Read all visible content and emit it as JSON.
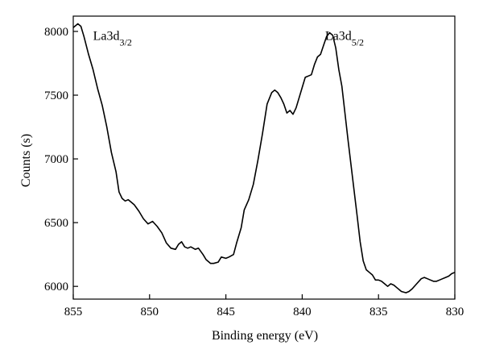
{
  "chart_data": {
    "type": "line",
    "title": "",
    "xlabel": "Binding energy (eV)",
    "ylabel": "Counts (s)",
    "xlim": [
      855,
      830
    ],
    "ylim": [
      5900,
      8120
    ],
    "x_reversed": true,
    "x_ticks": [
      855,
      850,
      845,
      840,
      835,
      830
    ],
    "x_tick_labels": [
      "855",
      "850",
      "845",
      "840",
      "835",
      "830"
    ],
    "y_ticks": [
      6000,
      6500,
      7000,
      7500,
      8000
    ],
    "y_tick_labels": [
      "6000",
      "6500",
      "7000",
      "7500",
      "8000"
    ],
    "grid": false,
    "legend": "none",
    "series": [
      {
        "color": "#000000",
        "x": [
          855.0,
          854.7,
          854.5,
          854.3,
          854.0,
          853.7,
          853.4,
          853.1,
          852.8,
          852.5,
          852.2,
          852.0,
          851.8,
          851.6,
          851.4,
          851.2,
          851.0,
          850.7,
          850.4,
          850.1,
          849.8,
          849.5,
          849.2,
          848.9,
          848.6,
          848.3,
          848.1,
          847.9,
          847.7,
          847.5,
          847.3,
          847.0,
          846.8,
          846.5,
          846.3,
          846.0,
          845.8,
          845.5,
          845.3,
          845.0,
          844.8,
          844.5,
          844.3,
          844.0,
          843.8,
          843.5,
          843.2,
          842.9,
          842.6,
          842.3,
          842.0,
          841.8,
          841.6,
          841.4,
          841.2,
          841.0,
          840.8,
          840.6,
          840.4,
          840.2,
          840.0,
          839.8,
          839.6,
          839.4,
          839.2,
          839.0,
          838.8,
          838.6,
          838.4,
          838.2,
          838.0,
          837.8,
          837.6,
          837.4,
          837.2,
          837.0,
          836.8,
          836.6,
          836.4,
          836.2,
          836.0,
          835.8,
          835.6,
          835.4,
          835.2,
          835.0,
          834.8,
          834.6,
          834.4,
          834.2,
          834.0,
          833.8,
          833.5,
          833.2,
          833.0,
          832.8,
          832.5,
          832.2,
          832.0,
          831.8,
          831.6,
          831.4,
          831.2,
          831.0,
          830.8,
          830.6,
          830.4,
          830.2,
          830.0
        ],
        "y": [
          8030,
          8060,
          8040,
          7960,
          7820,
          7700,
          7550,
          7420,
          7250,
          7050,
          6900,
          6740,
          6690,
          6670,
          6680,
          6660,
          6640,
          6590,
          6530,
          6490,
          6510,
          6470,
          6420,
          6340,
          6300,
          6290,
          6330,
          6350,
          6310,
          6300,
          6310,
          6290,
          6300,
          6250,
          6210,
          6180,
          6180,
          6190,
          6230,
          6220,
          6230,
          6250,
          6340,
          6460,
          6600,
          6680,
          6800,
          6990,
          7200,
          7430,
          7520,
          7540,
          7520,
          7480,
          7430,
          7360,
          7380,
          7350,
          7400,
          7480,
          7560,
          7640,
          7650,
          7660,
          7740,
          7800,
          7820,
          7890,
          7960,
          7990,
          7970,
          7870,
          7700,
          7570,
          7360,
          7150,
          6950,
          6750,
          6550,
          6350,
          6200,
          6130,
          6110,
          6090,
          6050,
          6050,
          6040,
          6020,
          6000,
          6020,
          6010,
          5990,
          5960,
          5950,
          5960,
          5980,
          6020,
          6060,
          6070,
          6060,
          6050,
          6040,
          6040,
          6050,
          6060,
          6070,
          6080,
          6100,
          6110
        ]
      }
    ],
    "annotations": [
      {
        "base": "La3d",
        "sub": "3/2",
        "x": 853.7,
        "y": 7935
      },
      {
        "base": "La3d",
        "sub": "5/2",
        "x": 838.5,
        "y": 7935
      }
    ]
  }
}
